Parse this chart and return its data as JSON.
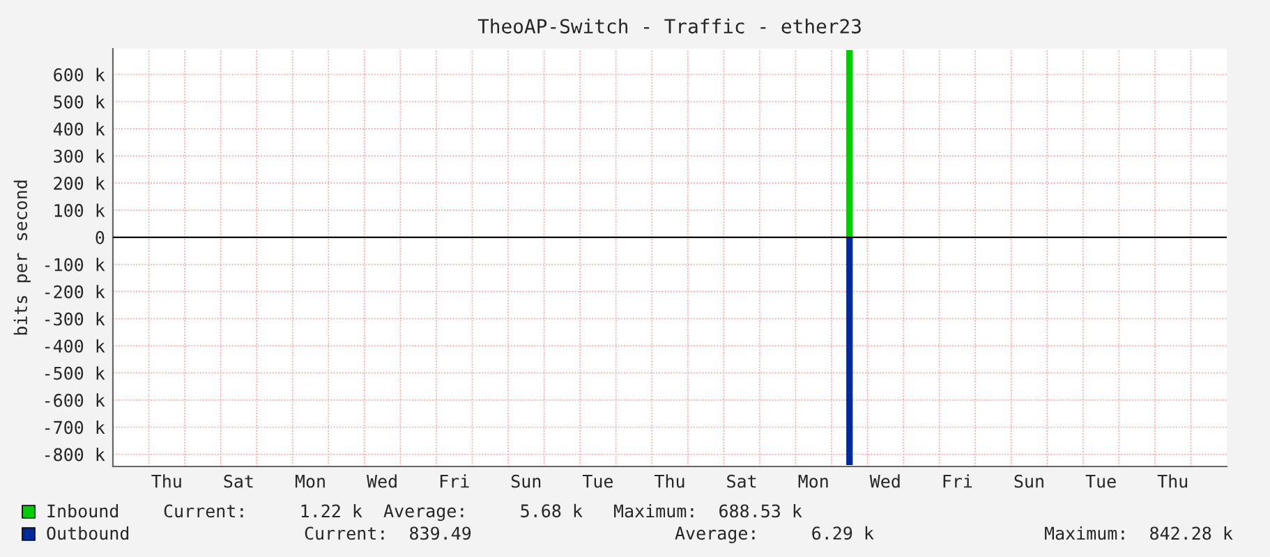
{
  "chart_data": {
    "type": "bar",
    "title": "TheoAP-Switch - Traffic - ether23",
    "ylabel": "bits per second",
    "series": [
      {
        "name": "Inbound",
        "color": "#00cc00",
        "values": [
          0,
          0,
          0,
          0,
          0,
          0,
          0,
          0,
          0,
          0,
          0,
          0,
          0,
          0,
          0,
          0,
          0,
          0,
          0,
          0,
          690000,
          0,
          0,
          0,
          0,
          0,
          0,
          0,
          0,
          0,
          0
        ]
      },
      {
        "name": "Outbound",
        "color": "#002a97",
        "values": [
          0,
          0,
          0,
          0,
          0,
          0,
          0,
          0,
          0,
          0,
          0,
          0,
          0,
          0,
          0,
          0,
          0,
          0,
          0,
          0,
          -840000,
          0,
          0,
          0,
          0,
          0,
          0,
          0,
          0,
          0,
          0
        ]
      }
    ],
    "categories": [
      null,
      "Thu",
      null,
      "Sat",
      null,
      "Mon",
      null,
      "Wed",
      null,
      "Fri",
      null,
      "Sun",
      null,
      "Tue",
      null,
      "Thu",
      null,
      "Sat",
      null,
      "Mon",
      null,
      "Wed",
      null,
      "Fri",
      null,
      "Sun",
      null,
      "Tue",
      null,
      "Thu",
      null
    ],
    "ylim": [
      -845000,
      695000
    ],
    "yticks": [
      {
        "value": -800000,
        "label": "-800 k"
      },
      {
        "value": -700000,
        "label": "-700 k"
      },
      {
        "value": -600000,
        "label": "-600 k"
      },
      {
        "value": -500000,
        "label": "-500 k"
      },
      {
        "value": -400000,
        "label": "-400 k"
      },
      {
        "value": -300000,
        "label": "-300 k"
      },
      {
        "value": -200000,
        "label": "-200 k"
      },
      {
        "value": -100000,
        "label": "-100 k"
      },
      0,
      {
        "value": 100000,
        "label": "100 k"
      },
      {
        "value": 200000,
        "label": "200 k"
      },
      {
        "value": 300000,
        "label": "300 k"
      },
      {
        "value": 400000,
        "label": "400 k"
      },
      {
        "value": 500000,
        "label": "500 k"
      },
      {
        "value": 600000,
        "label": "600 k"
      }
    ],
    "ref_lines": [
      {
        "axis": "y",
        "value": 0,
        "color": "#000000"
      }
    ],
    "grid": true,
    "legend": "bottom",
    "annotations": [
      "Current:     1.22 k",
      "Average:     5.68 k",
      "Maximum:  688.53 k",
      "Current:  839.49",
      "Average:     6.29 k",
      "Maximum:  842.28 k"
    ]
  }
}
